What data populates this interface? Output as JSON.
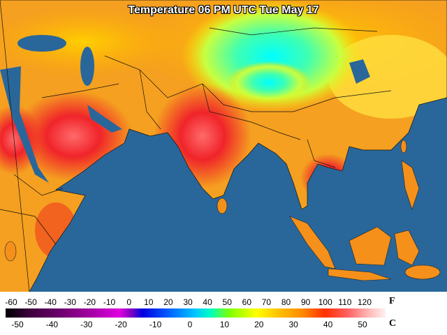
{
  "title": "Temperature 06 PM UTC Tue May 17",
  "legend": {
    "fahrenheit": {
      "unit": "F",
      "labels": [
        -60,
        -50,
        -40,
        -30,
        -20,
        -10,
        0,
        10,
        20,
        30,
        40,
        50,
        60,
        70,
        80,
        90,
        100,
        110,
        120
      ]
    },
    "celsius": {
      "unit": "C",
      "labels": [
        -50,
        -40,
        -30,
        -20,
        -10,
        0,
        10,
        20,
        30,
        40,
        50
      ]
    }
  }
}
